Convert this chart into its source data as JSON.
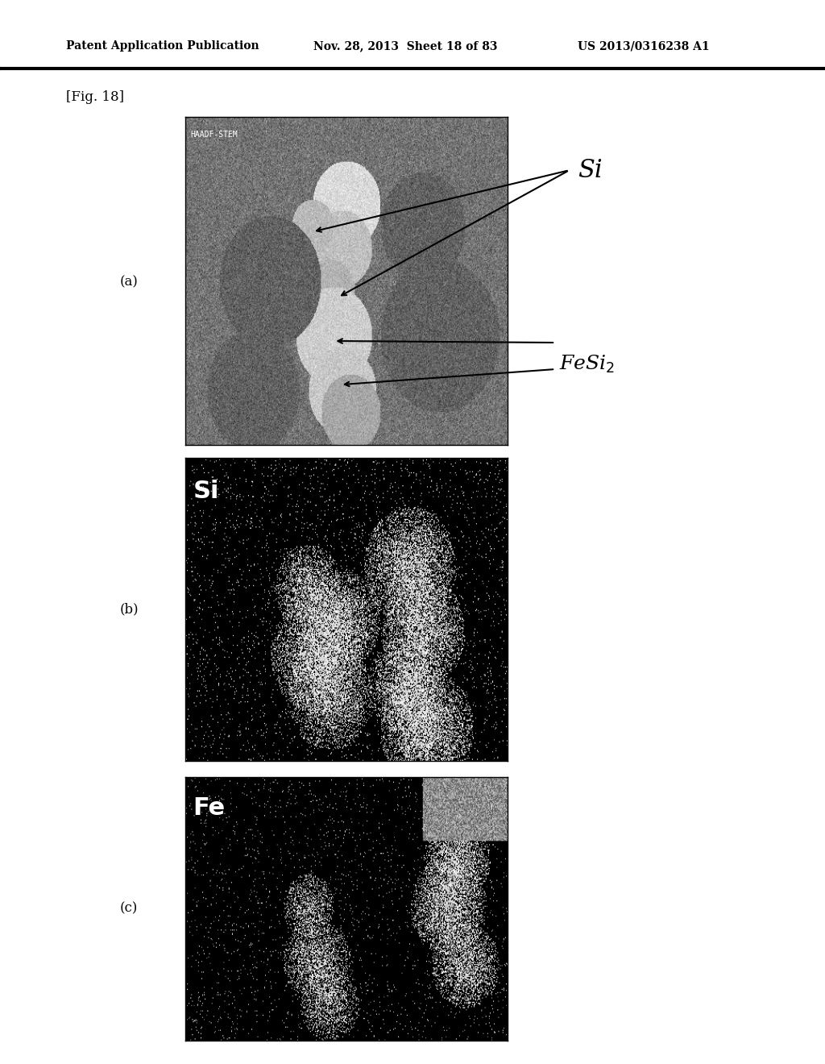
{
  "bg_color": "#ffffff",
  "header_left": "Patent Application Publication",
  "header_mid": "Nov. 28, 2013  Sheet 18 of 83",
  "header_right": "US 2013/0316238 A1",
  "fig_label": "[Fig. 18]",
  "panel_a_label": "(a)",
  "panel_b_label": "(b)",
  "panel_c_label": "(c)",
  "panel_a_watermark": "HAADF-STEM",
  "panel_b_element": "Si",
  "panel_c_element": "Fe",
  "si_label": "Si",
  "fesi2_label": "FeSi$_2$"
}
